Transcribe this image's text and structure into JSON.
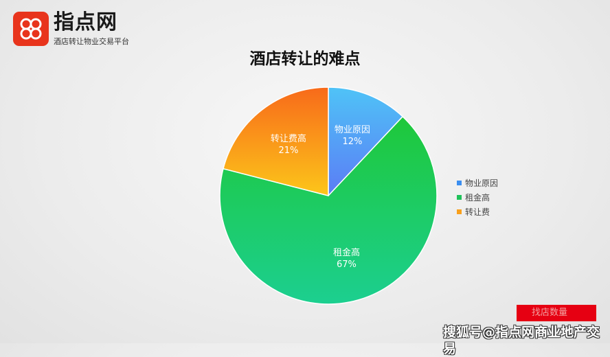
{
  "logo": {
    "name": "指点网",
    "subtitle": "酒店转让物业交易平台"
  },
  "title": "酒店转让的难点",
  "chart_data": {
    "type": "pie",
    "title": "酒店转让的难点",
    "legend_position": "right",
    "slices": [
      {
        "name": "物业原因",
        "value": 12,
        "label": "12%",
        "colors": [
          "#4fc3f7",
          "#5b7cf5"
        ]
      },
      {
        "name": "租金高",
        "value": 67,
        "label": "67%",
        "colors": [
          "#1ec83a",
          "#1ccf90"
        ]
      },
      {
        "name": "转让费",
        "label_name": "转让费高",
        "value": 21,
        "label": "21%",
        "colors": [
          "#f86a1a",
          "#fcc61a"
        ]
      }
    ]
  },
  "legend": [
    {
      "label": "物业原因",
      "color": "#3b8ef0"
    },
    {
      "label": "租金高",
      "color": "#1fc25a"
    },
    {
      "label": "转让费",
      "color": "#f9a01c"
    }
  ],
  "footer": {
    "red_box_text": "找店数量",
    "watermark": "搜狐号@指点网商业地产交易"
  }
}
